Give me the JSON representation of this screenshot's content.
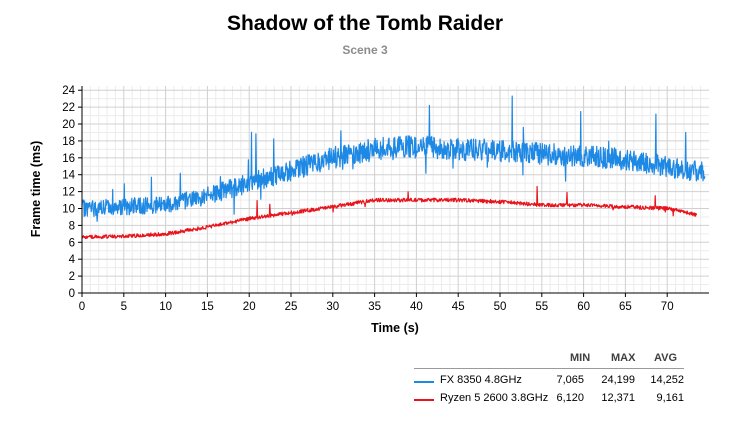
{
  "chart_data": {
    "type": "line",
    "title": "Shadow of the Tomb Raider",
    "subtitle": "Scene 3",
    "xlabel": "Time (s)",
    "ylabel": "Frame time (ms)",
    "xlim": [
      0,
      75
    ],
    "ylim": [
      0,
      24.5
    ],
    "x_ticks": [
      0,
      5,
      10,
      15,
      20,
      25,
      30,
      35,
      40,
      45,
      50,
      55,
      60,
      65,
      70
    ],
    "y_ticks": [
      0,
      2,
      4,
      6,
      8,
      10,
      12,
      14,
      16,
      18,
      20,
      22,
      24
    ],
    "grid": true,
    "legend_position": "bottom-right",
    "stats_headers": [
      "MIN",
      "MAX",
      "AVG"
    ],
    "series": [
      {
        "name": "FX 8350 4.8GHz",
        "color": "#1e88e5",
        "min": "7,065",
        "max": "24,199",
        "avg": "14,252",
        "x": [
          0,
          5,
          10,
          15,
          20,
          25,
          30,
          35,
          40,
          45,
          50,
          55,
          60,
          65,
          70,
          72.5,
          74.5
        ],
        "y": [
          10.0,
          10.2,
          10.5,
          11.5,
          13.0,
          14.5,
          16.0,
          17.0,
          17.3,
          17.0,
          16.8,
          16.5,
          16.2,
          15.8,
          15.0,
          14.5,
          14.3
        ]
      },
      {
        "name": "Ryzen 5 2600 3.8GHz",
        "color": "#e8141c",
        "min": "6,120",
        "max": "12,371",
        "avg": "9,161",
        "x": [
          0,
          5,
          10,
          15,
          20,
          25,
          30,
          35,
          40,
          45,
          50,
          55,
          60,
          65,
          70,
          72.5,
          73.5
        ],
        "y": [
          6.6,
          6.7,
          7.0,
          7.8,
          8.8,
          9.5,
          10.2,
          11.0,
          11.0,
          11.0,
          10.8,
          10.4,
          10.4,
          10.2,
          10.0,
          9.5,
          9.2
        ]
      }
    ]
  }
}
